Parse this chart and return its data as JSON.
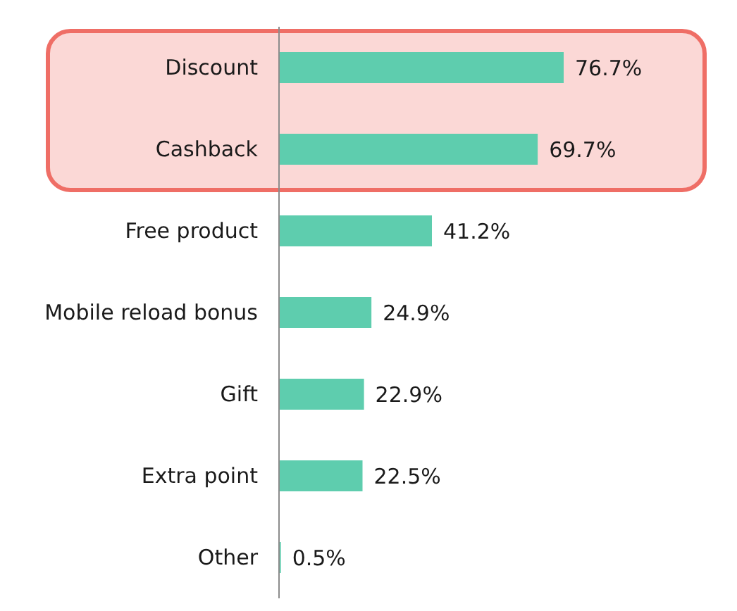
{
  "chart_data": {
    "type": "bar",
    "orientation": "horizontal",
    "categories": [
      "Discount",
      "Cashback",
      "Free product",
      "Mobile reload bonus",
      "Gift",
      "Extra point",
      "Other"
    ],
    "values": [
      76.7,
      69.7,
      41.2,
      24.9,
      22.9,
      22.5,
      0.5
    ],
    "value_labels": [
      "76.7%",
      "69.7%",
      "41.2%",
      "24.9%",
      "22.9%",
      "22.5%",
      "0.5%"
    ],
    "color": "#5ecdae",
    "tick_labels": "y",
    "bands": [
      {
        "axis": "y",
        "from": "Discount",
        "to": "Cashback",
        "color": "#ef6e66"
      }
    ]
  }
}
